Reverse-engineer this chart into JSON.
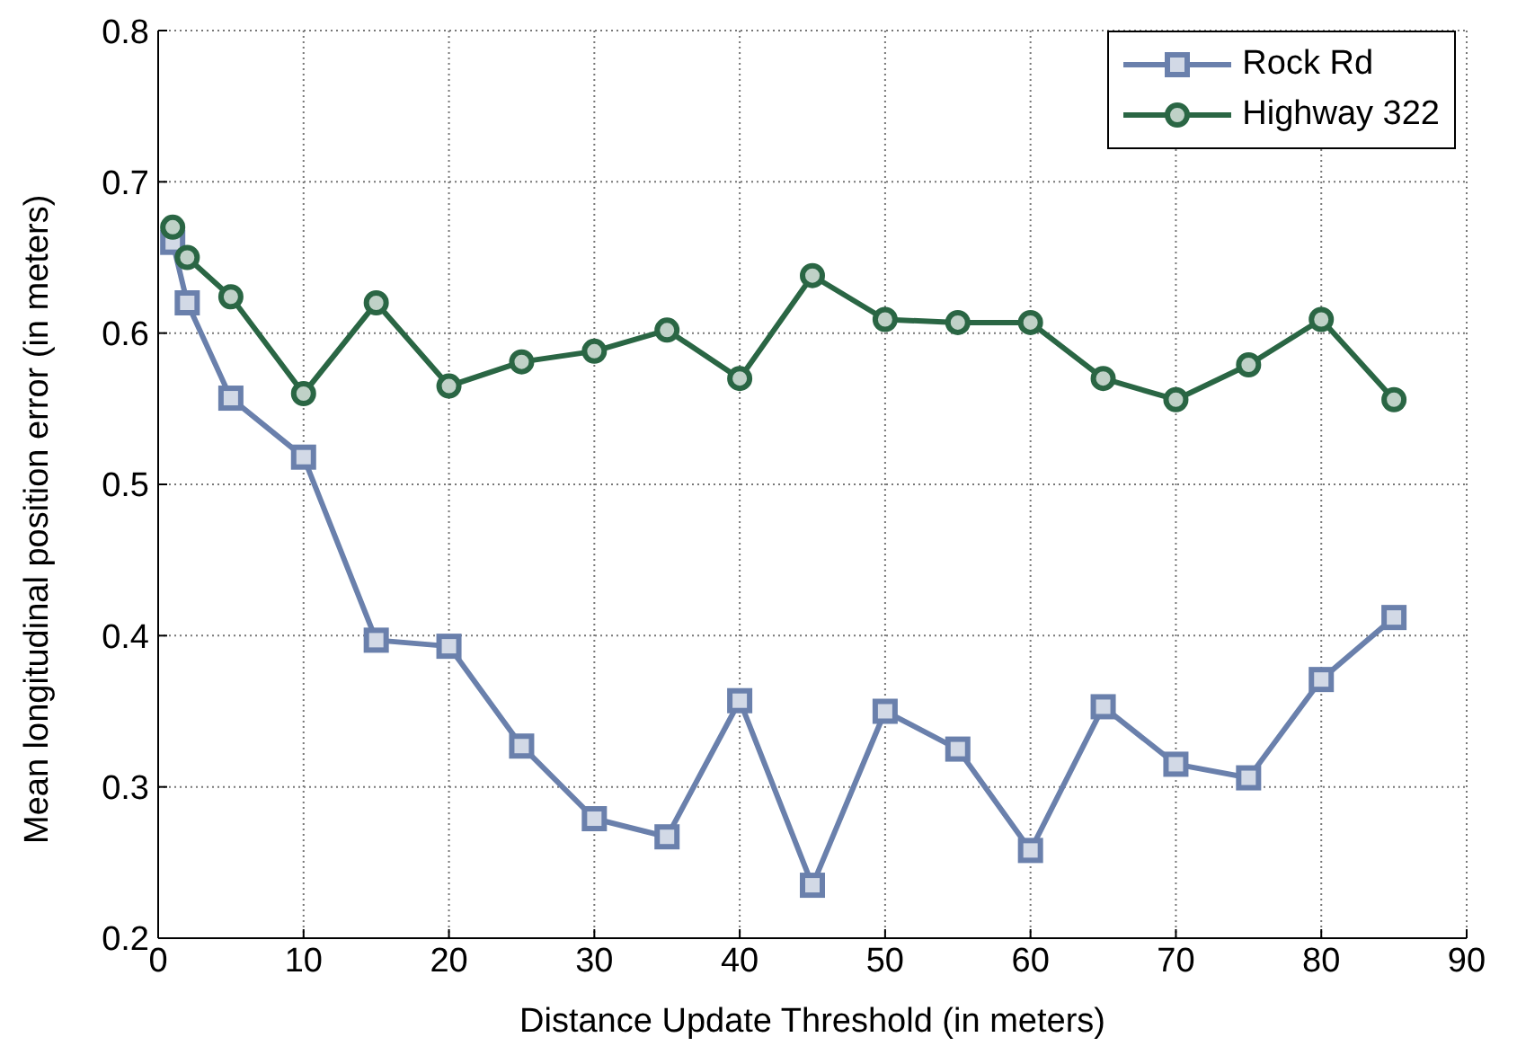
{
  "chart_data": {
    "type": "line",
    "xlabel": "Distance Update Threshold (in meters)",
    "ylabel": "Mean longitudinal position error (in meters)",
    "x": [
      1,
      2,
      5,
      10,
      15,
      20,
      25,
      30,
      35,
      40,
      45,
      50,
      55,
      60,
      65,
      70,
      75,
      80,
      85
    ],
    "series": [
      {
        "name": "Rock Rd",
        "color": "#6a80ac",
        "marker": "square",
        "values": [
          0.66,
          0.62,
          0.557,
          0.518,
          0.397,
          0.393,
          0.327,
          0.279,
          0.267,
          0.357,
          0.235,
          0.35,
          0.325,
          0.258,
          0.353,
          0.315,
          0.306,
          0.371,
          0.412
        ]
      },
      {
        "name": "Highway 322",
        "color": "#2a6644",
        "marker": "circle",
        "values": [
          0.67,
          0.65,
          0.624,
          0.56,
          0.62,
          0.565,
          0.581,
          0.588,
          0.602,
          0.57,
          0.638,
          0.609,
          0.607,
          0.607,
          0.57,
          0.556,
          0.579,
          0.609,
          0.556
        ]
      }
    ],
    "xlim": [
      0,
      90
    ],
    "xticks": [
      0,
      10,
      20,
      30,
      40,
      50,
      60,
      70,
      80,
      90
    ],
    "ylim": [
      0.2,
      0.8
    ],
    "yticks": [
      0.2,
      0.3,
      0.4,
      0.5,
      0.6,
      0.7,
      0.8
    ],
    "grid": true,
    "legend": "top right",
    "line_style": "solid"
  }
}
